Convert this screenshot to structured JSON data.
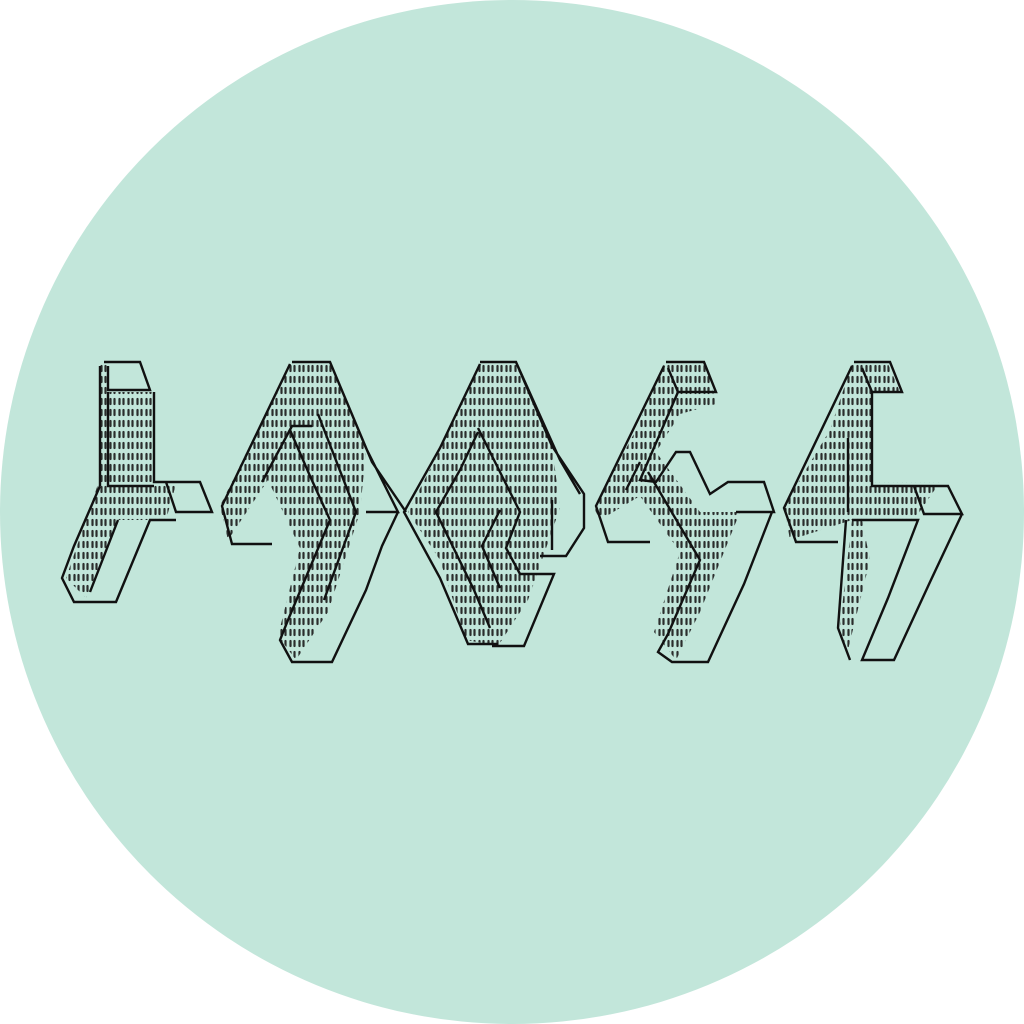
{
  "background": {
    "color": "#ffffff"
  },
  "disc": {
    "color": "#c2e6da",
    "shape": "circle"
  },
  "artwork": {
    "style": "ascii-art 3D block glyphs",
    "stroke_color": "#111111",
    "dot_color": "#1a1a1a",
    "glyph_count": 5,
    "glyphs": [
      {
        "id": "glyph-1",
        "icon": "stepped-l-shape-icon"
      },
      {
        "id": "glyph-2",
        "icon": "chevron-y-shape-icon"
      },
      {
        "id": "glyph-3",
        "icon": "chevron-loop-shape-icon"
      },
      {
        "id": "glyph-4",
        "icon": "chevron-y-shape-icon"
      },
      {
        "id": "glyph-5",
        "icon": "stepped-l-shape-icon"
      }
    ]
  }
}
